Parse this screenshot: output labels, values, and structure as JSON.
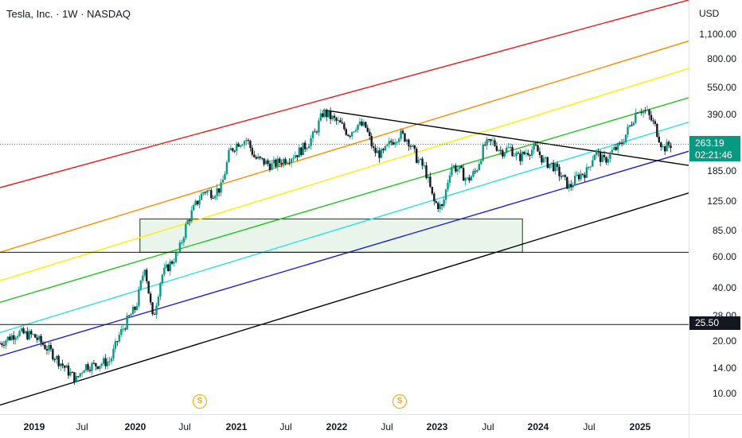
{
  "title": "Tesla, Inc. · 1W · NASDAQ",
  "currency": "USD",
  "price_ticks": [
    "1,100.00",
    "800.00",
    "550.00",
    "390.00",
    "185.00",
    "125.00",
    "85.00",
    "60.00",
    "40.00",
    "28.00",
    "20.00",
    "14.00",
    "10.00"
  ],
  "time_ticks": [
    {
      "label": "2019",
      "year": true
    },
    {
      "label": "Jul",
      "year": false
    },
    {
      "label": "2020",
      "year": true
    },
    {
      "label": "Jul",
      "year": false
    },
    {
      "label": "2021",
      "year": true
    },
    {
      "label": "Jul",
      "year": false
    },
    {
      "label": "2022",
      "year": true
    },
    {
      "label": "Jul",
      "year": false
    },
    {
      "label": "2023",
      "year": true
    },
    {
      "label": "Jul",
      "year": false
    },
    {
      "label": "2024",
      "year": true
    },
    {
      "label": "Jul",
      "year": false
    },
    {
      "label": "2025",
      "year": true
    }
  ],
  "last_price": "263.19",
  "countdown": "02:21:46",
  "level_label": "25.50",
  "dividend_marker": "S",
  "colors": {
    "up": "#089981",
    "down": "#131722",
    "accent": "#089981"
  },
  "chart_data": {
    "type": "candlestick",
    "title": "Tesla, Inc. · 1W · NASDAQ",
    "y_scale": "log",
    "ylim": [
      8,
      1700
    ],
    "xlim": [
      "2018-09-01",
      "2025-06-01"
    ],
    "series": [
      {
        "values": [
          [
            "2018-09-01",
            20
          ],
          [
            "2018-11-01",
            23
          ],
          [
            "2019-01-01",
            22
          ],
          [
            "2019-03-01",
            18
          ],
          [
            "2019-05-01",
            14
          ],
          [
            "2019-06-01",
            12.5
          ],
          [
            "2019-07-01",
            15
          ],
          [
            "2019-08-01",
            15
          ],
          [
            "2019-10-01",
            16
          ],
          [
            "2019-11-01",
            22
          ],
          [
            "2019-12-01",
            27
          ],
          [
            "2020-01-01",
            32
          ],
          [
            "2020-02-01",
            55
          ],
          [
            "2020-03-01",
            27
          ],
          [
            "2020-04-01",
            48
          ],
          [
            "2020-06-01",
            65
          ],
          [
            "2020-07-01",
            95
          ],
          [
            "2020-08-01",
            120
          ],
          [
            "2020-09-01",
            145
          ],
          [
            "2020-10-01",
            140
          ],
          [
            "2020-11-01",
            150
          ],
          [
            "2020-12-01",
            240
          ],
          [
            "2021-01-01",
            270
          ],
          [
            "2021-02-01",
            280
          ],
          [
            "2021-03-01",
            220
          ],
          [
            "2021-05-01",
            200
          ],
          [
            "2021-06-01",
            210
          ],
          [
            "2021-08-01",
            235
          ],
          [
            "2021-09-01",
            260
          ],
          [
            "2021-10-01",
            300
          ],
          [
            "2021-11-01",
            400
          ],
          [
            "2022-01-01",
            340
          ],
          [
            "2022-02-01",
            300
          ],
          [
            "2022-03-01",
            340
          ],
          [
            "2022-04-01",
            330
          ],
          [
            "2022-05-01",
            240
          ],
          [
            "2022-06-01",
            230
          ],
          [
            "2022-07-01",
            270
          ],
          [
            "2022-08-01",
            300
          ],
          [
            "2022-09-01",
            280
          ],
          [
            "2022-10-01",
            220
          ],
          [
            "2022-11-01",
            190
          ],
          [
            "2022-12-01",
            125
          ],
          [
            "2023-01-01",
            115
          ],
          [
            "2023-02-01",
            200
          ],
          [
            "2023-03-01",
            190
          ],
          [
            "2023-04-01",
            165
          ],
          [
            "2023-05-01",
            185
          ],
          [
            "2023-06-01",
            260
          ],
          [
            "2023-07-01",
            270
          ],
          [
            "2023-08-01",
            240
          ],
          [
            "2023-09-01",
            250
          ],
          [
            "2023-10-01",
            220
          ],
          [
            "2023-11-01",
            240
          ],
          [
            "2023-12-01",
            250
          ],
          [
            "2024-01-01",
            210
          ],
          [
            "2024-02-01",
            200
          ],
          [
            "2024-03-01",
            175
          ],
          [
            "2024-04-01",
            150
          ],
          [
            "2024-05-01",
            175
          ],
          [
            "2024-06-01",
            185
          ],
          [
            "2024-07-01",
            240
          ],
          [
            "2024-08-01",
            210
          ],
          [
            "2024-09-01",
            240
          ],
          [
            "2024-10-01",
            260
          ],
          [
            "2024-11-01",
            330
          ],
          [
            "2024-12-01",
            420
          ],
          [
            "2025-01-01",
            400
          ],
          [
            "2025-02-01",
            330
          ],
          [
            "2025-03-01",
            250
          ],
          [
            "2025-04-01",
            263.19
          ]
        ]
      }
    ],
    "horizontal_levels": [
      25.5,
      65
    ],
    "rectangle": {
      "x": [
        "2020-01-15",
        "2023-10-15"
      ],
      "y": [
        65,
        100
      ]
    },
    "trendlines": [
      {
        "color": "#e31e1e",
        "points": [
          [
            "2018-09-01",
            150
          ],
          [
            "2025-06-01",
            1700
          ]
        ]
      },
      {
        "color": "#ff8c00",
        "points": [
          [
            "2018-09-01",
            65
          ],
          [
            "2025-06-01",
            1000
          ]
        ]
      },
      {
        "color": "#ffee00",
        "points": [
          [
            "2018-09-01",
            45
          ],
          [
            "2025-06-01",
            700
          ]
        ]
      },
      {
        "color": "#22c322",
        "points": [
          [
            "2018-09-01",
            34
          ],
          [
            "2025-06-01",
            480
          ]
        ]
      },
      {
        "color": "#2fe0e0",
        "points": [
          [
            "2018-09-01",
            23
          ],
          [
            "2025-06-01",
            350
          ]
        ]
      },
      {
        "color": "#1f22c8",
        "points": [
          [
            "2018-09-01",
            17
          ],
          [
            "2025-06-01",
            240
          ]
        ]
      },
      {
        "color": "#000000",
        "points": [
          [
            "2018-09-01",
            9
          ],
          [
            "2025-06-01",
            140
          ]
        ]
      },
      {
        "color": "#000000",
        "points": [
          [
            "2021-11-01",
            410
          ],
          [
            "2025-06-01",
            200
          ]
        ]
      }
    ]
  }
}
